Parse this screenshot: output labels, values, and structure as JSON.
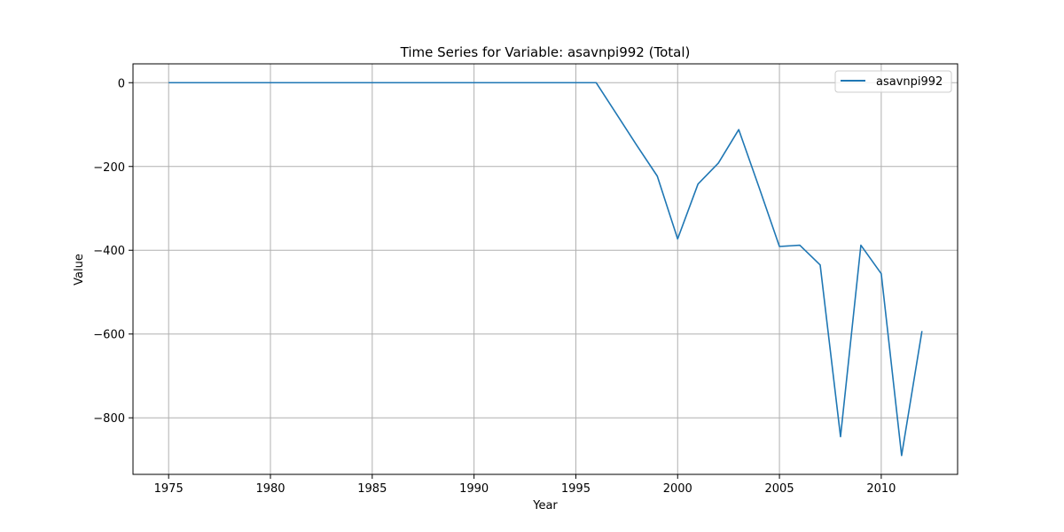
{
  "chart_data": {
    "type": "line",
    "title": "Time Series for Variable: asavnpi992 (Total)",
    "xlabel": "Year",
    "ylabel": "Value",
    "xlim": [
      1973.25,
      2013.75
    ],
    "ylim": [
      -935,
      45
    ],
    "xticks": [
      1975,
      1980,
      1985,
      1990,
      1995,
      2000,
      2005,
      2010
    ],
    "yticks": [
      0,
      -200,
      -400,
      -600,
      -800
    ],
    "ytick_labels": [
      "0",
      "−200",
      "−400",
      "−600",
      "−800"
    ],
    "grid": true,
    "legend_position": "top-right",
    "series": [
      {
        "name": "asavnpi992",
        "color": "#1f77b4",
        "x": [
          1975,
          1976,
          1977,
          1978,
          1979,
          1980,
          1981,
          1982,
          1983,
          1984,
          1985,
          1986,
          1987,
          1988,
          1989,
          1990,
          1991,
          1992,
          1993,
          1994,
          1995,
          1996,
          1997,
          1998,
          1999,
          2000,
          2001,
          2002,
          2003,
          2004,
          2005,
          2006,
          2007,
          2008,
          2009,
          2010,
          2011,
          2012
        ],
        "values": [
          0,
          0,
          0,
          0,
          0,
          0,
          0,
          0,
          0,
          0,
          0,
          0,
          0,
          0,
          0,
          0,
          0,
          0,
          0,
          0,
          0,
          0,
          -75,
          -150,
          -223,
          -373,
          -242,
          -192,
          -112,
          -250,
          -391,
          -388,
          -435,
          -845,
          -388,
          -456,
          -890,
          -593
        ]
      }
    ]
  }
}
